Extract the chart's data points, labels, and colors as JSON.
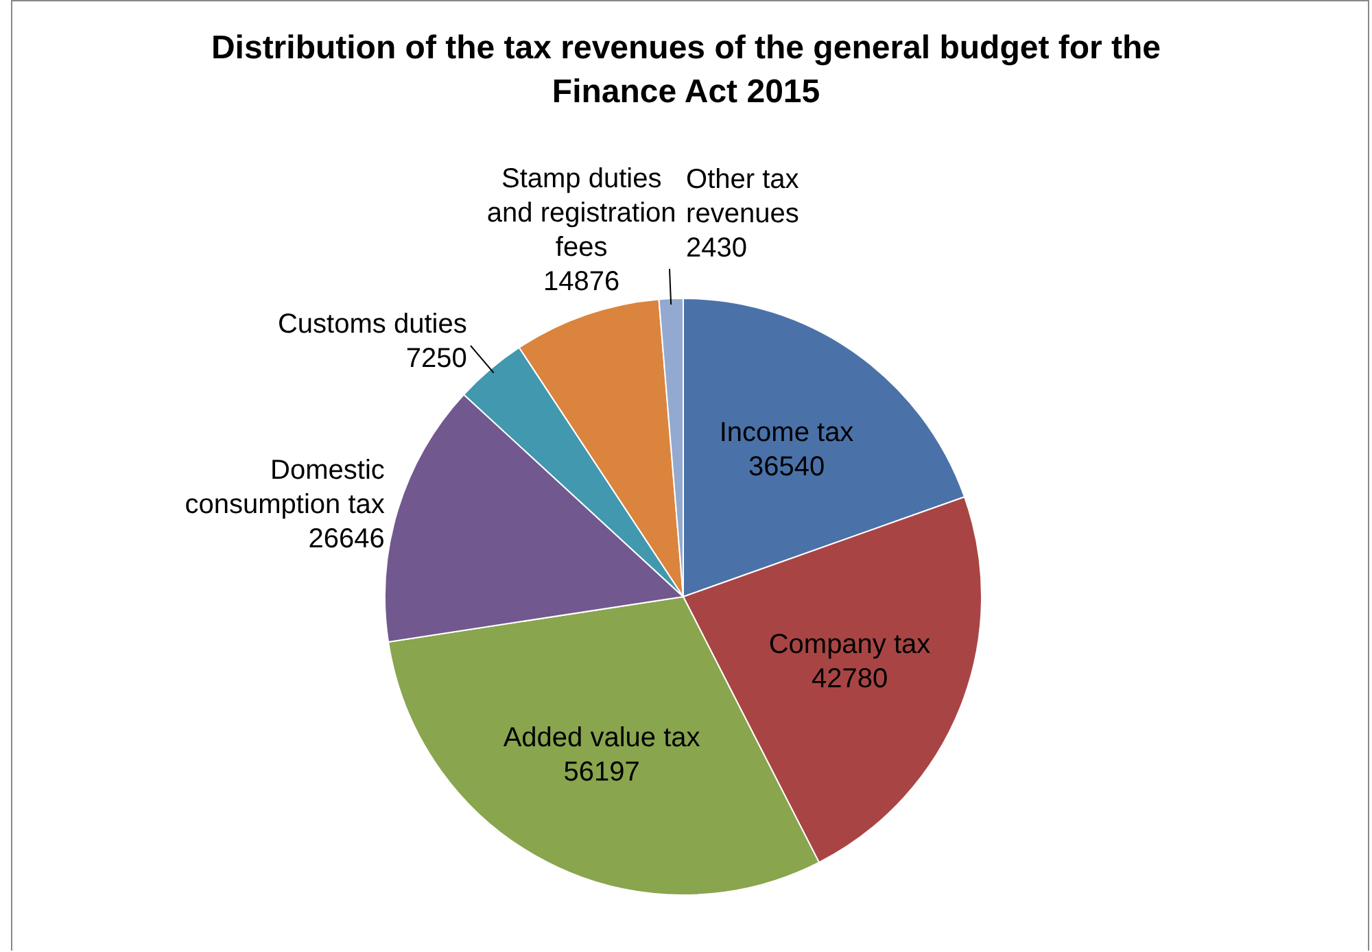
{
  "chart_data": {
    "type": "pie",
    "title": "Distribution of the tax revenues of the general budget for the Finance Act 2015",
    "categories": [
      "Income tax",
      "Company tax",
      "Added value tax",
      "Domestic consumption tax",
      "Customs duties",
      "Stamp duties and registration fees",
      "Other tax revenues"
    ],
    "values": [
      36540,
      42780,
      56197,
      26646,
      7250,
      14876,
      2430
    ],
    "colors": [
      "#4a72a8",
      "#a84544",
      "#89a54e",
      "#71588f",
      "#4198af",
      "#db843d",
      "#93a9cf"
    ],
    "data_labels": true,
    "legend": false
  }
}
